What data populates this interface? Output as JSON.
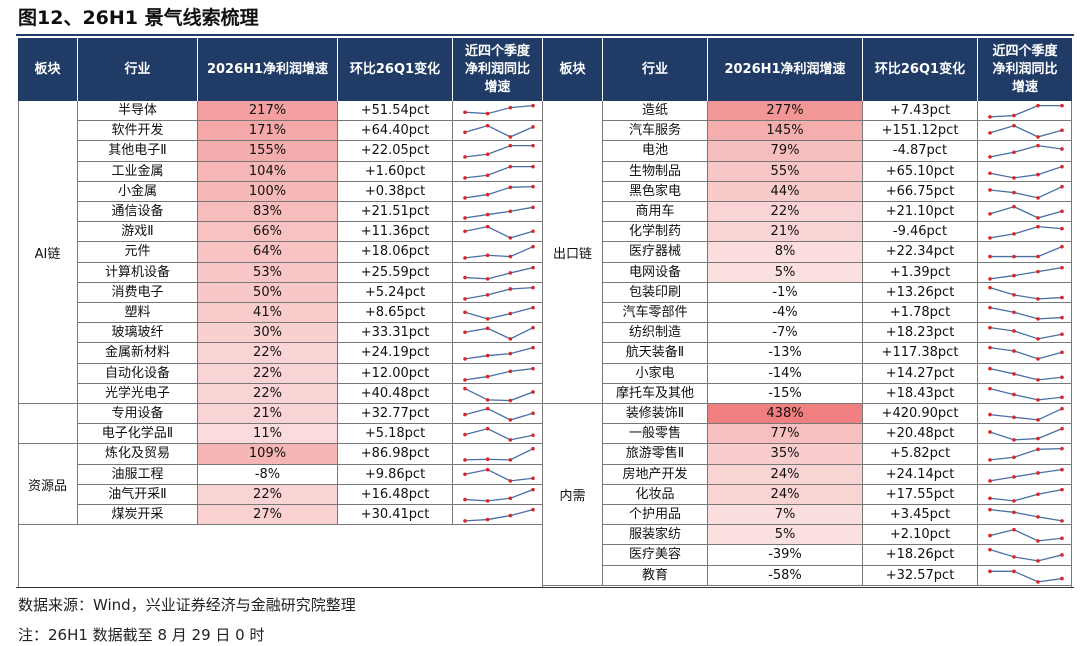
{
  "title": "图12、26H1 景气线索梳理",
  "headers": {
    "sector": "板块",
    "industry": "行业",
    "growth": "2026H1净利润增速",
    "qoq": "环比26Q1变化",
    "trend_line1": "近四个季度",
    "trend_line2": "净利润同比",
    "trend_line3": "增速"
  },
  "colors": {
    "header_bg": "#1f3b66",
    "header_text": "#ffffff",
    "highlight_base": "#f08080",
    "spark_line": "#4a6fa5",
    "spark_dot": "#d62728"
  },
  "left_groups": [
    {
      "sector": "AI链",
      "rows": [
        {
          "industry": "半导体",
          "growth": "217%",
          "growth_num": 217,
          "qoq": "+51.54pct",
          "trend": [
            0.45,
            0.35,
            0.8,
            0.95
          ]
        },
        {
          "industry": "软件开发",
          "growth": "171%",
          "growth_num": 171,
          "qoq": "+64.40pct",
          "trend": [
            0.45,
            0.95,
            0.1,
            0.85
          ]
        },
        {
          "industry": "其他电子Ⅱ",
          "growth": "155%",
          "growth_num": 155,
          "qoq": "+22.05pct",
          "trend": [
            0.1,
            0.3,
            0.95,
            0.95
          ]
        },
        {
          "industry": "工业金属",
          "growth": "104%",
          "growth_num": 104,
          "qoq": "+1.60pct",
          "trend": [
            0.1,
            0.3,
            0.95,
            0.95
          ]
        },
        {
          "industry": "小金属",
          "growth": "100%",
          "growth_num": 100,
          "qoq": "+0.38pct",
          "trend": [
            0.1,
            0.35,
            0.9,
            0.95
          ]
        },
        {
          "industry": "通信设备",
          "growth": "83%",
          "growth_num": 83,
          "qoq": "+21.51pct",
          "trend": [
            0.1,
            0.35,
            0.6,
            0.9
          ]
        },
        {
          "industry": "游戏Ⅱ",
          "growth": "66%",
          "growth_num": 66,
          "qoq": "+11.36pct",
          "trend": [
            0.6,
            0.95,
            0.1,
            0.6
          ]
        },
        {
          "industry": "元件",
          "growth": "64%",
          "growth_num": 64,
          "qoq": "+18.06pct",
          "trend": [
            0.1,
            0.3,
            0.2,
            0.95
          ]
        },
        {
          "industry": "计算机设备",
          "growth": "53%",
          "growth_num": 53,
          "qoq": "+25.59pct",
          "trend": [
            0.2,
            0.1,
            0.55,
            0.95
          ]
        },
        {
          "industry": "消费电子",
          "growth": "50%",
          "growth_num": 50,
          "qoq": "+5.24pct",
          "trend": [
            0.1,
            0.4,
            0.85,
            0.95
          ]
        },
        {
          "industry": "塑料",
          "growth": "41%",
          "growth_num": 41,
          "qoq": "+8.65pct",
          "trend": [
            0.6,
            0.1,
            0.5,
            0.95
          ]
        },
        {
          "industry": "玻璃玻纤",
          "growth": "30%",
          "growth_num": 30,
          "qoq": "+33.31pct",
          "trend": [
            0.6,
            0.9,
            0.1,
            0.95
          ]
        },
        {
          "industry": "金属新材料",
          "growth": "22%",
          "growth_num": 22,
          "qoq": "+24.19pct",
          "trend": [
            0.1,
            0.35,
            0.5,
            0.95
          ]
        },
        {
          "industry": "自动化设备",
          "growth": "22%",
          "growth_num": 22,
          "qoq": "+12.00pct",
          "trend": [
            0.1,
            0.35,
            0.75,
            0.95
          ]
        },
        {
          "industry": "光学光电子",
          "growth": "22%",
          "growth_num": 22,
          "qoq": "+40.48pct",
          "trend": [
            0.95,
            0.1,
            0.05,
            0.7
          ]
        }
      ]
    },
    {
      "sector": "",
      "rows": [
        {
          "industry": "专用设备",
          "growth": "21%",
          "growth_num": 21,
          "qoq": "+32.77pct",
          "trend": [
            0.5,
            0.95,
            0.1,
            0.6
          ]
        },
        {
          "industry": "电子化学品Ⅱ",
          "growth": "11%",
          "growth_num": 11,
          "qoq": "+5.18pct",
          "trend": [
            0.5,
            0.95,
            0.1,
            0.45
          ]
        }
      ]
    },
    {
      "sector": "资源品",
      "rows": [
        {
          "industry": "炼化及贸易",
          "growth": "109%",
          "growth_num": 109,
          "qoq": "+86.98pct",
          "trend": [
            0.1,
            0.15,
            0.1,
            0.95
          ]
        },
        {
          "industry": "油服工程",
          "growth": "-8%",
          "growth_num": -8,
          "qoq": "+9.86pct",
          "trend": [
            0.6,
            0.95,
            0.1,
            0.3
          ]
        },
        {
          "industry": "油气开采Ⅱ",
          "growth": "22%",
          "growth_num": 22,
          "qoq": "+16.48pct",
          "trend": [
            0.2,
            0.1,
            0.3,
            0.95
          ]
        },
        {
          "industry": "煤炭开采",
          "growth": "27%",
          "growth_num": 27,
          "qoq": "+30.41pct",
          "trend": [
            0.1,
            0.2,
            0.5,
            0.95
          ]
        }
      ]
    }
  ],
  "right_groups": [
    {
      "sector": "出口链",
      "rows": [
        {
          "industry": "造纸",
          "growth": "277%",
          "growth_num": 277,
          "qoq": "+7.43pct",
          "trend": [
            0.1,
            0.2,
            0.95,
            0.95
          ]
        },
        {
          "industry": "汽车服务",
          "growth": "145%",
          "growth_num": 145,
          "qoq": "+151.12pct",
          "trend": [
            0.4,
            0.95,
            0.1,
            0.6
          ]
        },
        {
          "industry": "电池",
          "growth": "79%",
          "growth_num": 79,
          "qoq": "-4.87pct",
          "trend": [
            0.1,
            0.45,
            0.95,
            0.7
          ]
        },
        {
          "industry": "生物制品",
          "growth": "55%",
          "growth_num": 55,
          "qoq": "+65.10pct",
          "trend": [
            0.45,
            0.1,
            0.35,
            0.95
          ]
        },
        {
          "industry": "黑色家电",
          "growth": "44%",
          "growth_num": 44,
          "qoq": "+66.75pct",
          "trend": [
            0.7,
            0.5,
            0.1,
            0.95
          ]
        },
        {
          "industry": "商用车",
          "growth": "22%",
          "growth_num": 22,
          "qoq": "+21.10pct",
          "trend": [
            0.4,
            0.95,
            0.1,
            0.6
          ]
        },
        {
          "industry": "化学制药",
          "growth": "21%",
          "growth_num": 21,
          "qoq": "-9.46pct",
          "trend": [
            0.1,
            0.4,
            0.95,
            0.8
          ]
        },
        {
          "industry": "医疗器械",
          "growth": "8%",
          "growth_num": 8,
          "qoq": "+22.34pct",
          "trend": [
            0.2,
            0.2,
            0.2,
            0.95
          ]
        },
        {
          "industry": "电网设备",
          "growth": "5%",
          "growth_num": 5,
          "qoq": "+1.39pct",
          "trend": [
            0.1,
            0.35,
            0.65,
            0.95
          ]
        },
        {
          "industry": "包装印刷",
          "growth": "-1%",
          "growth_num": -1,
          "qoq": "+13.26pct",
          "trend": [
            0.95,
            0.4,
            0.1,
            0.2
          ]
        },
        {
          "industry": "汽车零部件",
          "growth": "-4%",
          "growth_num": -4,
          "qoq": "+1.78pct",
          "trend": [
            0.95,
            0.6,
            0.1,
            0.2
          ]
        },
        {
          "industry": "纺织制造",
          "growth": "-7%",
          "growth_num": -7,
          "qoq": "+18.23pct",
          "trend": [
            0.95,
            0.7,
            0.1,
            0.45
          ]
        },
        {
          "industry": "航天装备Ⅱ",
          "growth": "-13%",
          "growth_num": -13,
          "qoq": "+117.38pct",
          "trend": [
            0.95,
            0.7,
            0.1,
            0.6
          ]
        },
        {
          "industry": "小家电",
          "growth": "-14%",
          "growth_num": -14,
          "qoq": "+14.27pct",
          "trend": [
            0.95,
            0.55,
            0.1,
            0.3
          ]
        },
        {
          "industry": "摩托车及其他",
          "growth": "-15%",
          "growth_num": -15,
          "qoq": "+18.43pct",
          "trend": [
            0.95,
            0.5,
            0.1,
            0.3
          ]
        }
      ]
    },
    {
      "sector": "内需",
      "rows": [
        {
          "industry": "装修装饰Ⅱ",
          "growth": "438%",
          "growth_num": 438,
          "qoq": "+420.90pct",
          "trend": [
            0.5,
            0.3,
            0.1,
            0.95
          ]
        },
        {
          "industry": "一般零售",
          "growth": "77%",
          "growth_num": 77,
          "qoq": "+20.48pct",
          "trend": [
            0.7,
            0.1,
            0.2,
            0.95
          ]
        },
        {
          "industry": "旅游零售Ⅱ",
          "growth": "35%",
          "growth_num": 35,
          "qoq": "+5.82pct",
          "trend": [
            0.1,
            0.3,
            0.9,
            0.95
          ]
        },
        {
          "industry": "房地产开发",
          "growth": "24%",
          "growth_num": 24,
          "qoq": "+24.14pct",
          "trend": [
            0.1,
            0.4,
            0.7,
            0.95
          ]
        },
        {
          "industry": "化妆品",
          "growth": "24%",
          "growth_num": 24,
          "qoq": "+17.55pct",
          "trend": [
            0.3,
            0.1,
            0.6,
            0.95
          ]
        },
        {
          "industry": "个护用品",
          "growth": "7%",
          "growth_num": 7,
          "qoq": "+3.45pct",
          "trend": [
            0.95,
            0.75,
            0.4,
            0.1
          ]
        },
        {
          "industry": "服装家纺",
          "growth": "5%",
          "growth_num": 5,
          "qoq": "+2.10pct",
          "trend": [
            0.5,
            0.95,
            0.1,
            0.3
          ]
        },
        {
          "industry": "医疗美容",
          "growth": "-39%",
          "growth_num": -39,
          "qoq": "+18.26pct",
          "trend": [
            0.95,
            0.4,
            0.1,
            0.55
          ]
        },
        {
          "industry": "教育",
          "growth": "-58%",
          "growth_num": -58,
          "qoq": "+32.57pct",
          "trend": [
            0.9,
            0.9,
            0.1,
            0.35
          ]
        }
      ]
    }
  ],
  "source": "数据来源：Wind，兴业证券经济与金融研究院整理",
  "note": "注：26H1 数据截至 8 月 29 日 0 时"
}
